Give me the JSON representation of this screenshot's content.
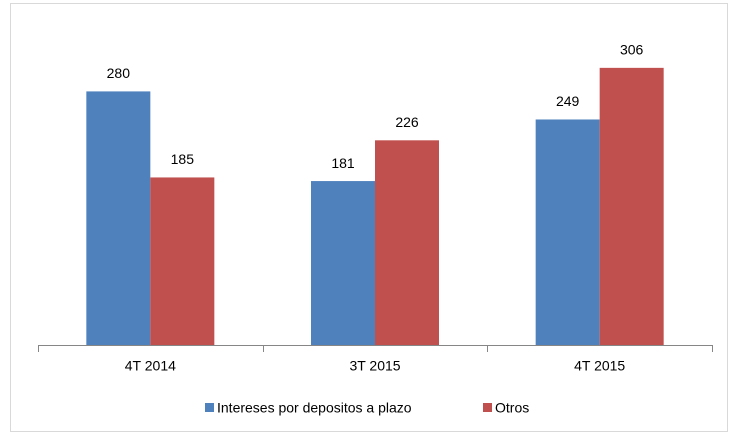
{
  "chart_data": {
    "type": "bar",
    "categories": [
      "4T 2014",
      "3T 2015",
      "4T 2015"
    ],
    "series": [
      {
        "name": "Intereses por depositos a plazo",
        "color": "#4f81bd",
        "values": [
          280,
          181,
          249
        ]
      },
      {
        "name": "Otros",
        "color": "#c0504d",
        "values": [
          185,
          226,
          306
        ]
      }
    ],
    "ylim": [
      0,
      350
    ],
    "legend": "bottom"
  }
}
